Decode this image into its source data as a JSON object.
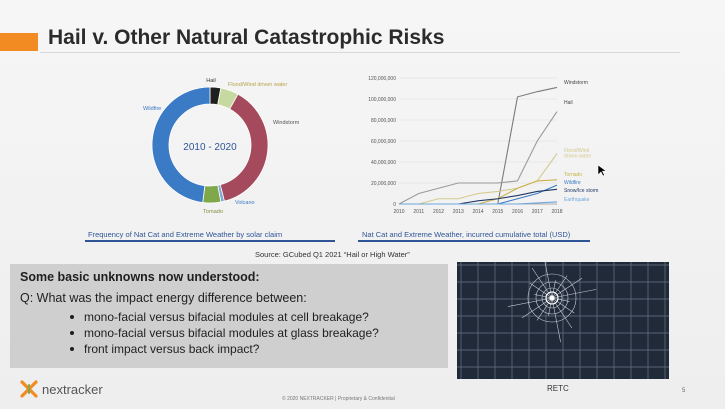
{
  "slide": {
    "title": "Hail v. Other Natural Catastrophic Risks",
    "source": "Source: GCubed Q1 2021 “Hail or High Water”",
    "photo_caption": "RETC",
    "footer": "© 2020 NEXTRACKER | Proprietary & Confidential",
    "page_number": "5",
    "accent_color": "#f28c22"
  },
  "logo": {
    "text": "nextracker",
    "icon": "nextracker-x-logo-icon"
  },
  "unknowns_panel": {
    "heading": "Some basic unknowns now understood:",
    "question": "Q: What was the impact energy difference between:",
    "bullets": [
      "mono-facial versus bifacial modules at cell breakage?",
      "mono-facial versus bifacial modules at glass breakage?",
      "front impact versus back impact?"
    ]
  },
  "chart_data": [
    {
      "type": "pie",
      "title": "",
      "center_label": "2010 - 2020",
      "caption": "Frequency of Nat Cat and Extreme Weather by solar claim",
      "slices": [
        {
          "label": "Hail",
          "value": 3,
          "color": "#1f1f1f"
        },
        {
          "label": "Flood/Wind driven water",
          "value": 5,
          "color": "#c5d9a0"
        },
        {
          "label": "Windstorm",
          "value": 38,
          "color": "#a54a5c"
        },
        {
          "label": "Volcano",
          "value": 1,
          "color": "#7fa7d6"
        },
        {
          "label": "Tornado",
          "value": 5,
          "color": "#7fa84a"
        },
        {
          "label": "Wildfire",
          "value": 48,
          "color": "#3b7ac4"
        }
      ]
    },
    {
      "type": "line",
      "title": "",
      "caption": "Nat Cat and Extreme Weather, incurred cumulative total (USD)",
      "x": [
        "2010",
        "2011",
        "2012",
        "2013",
        "2014",
        "2015",
        "2016",
        "2017",
        "2018"
      ],
      "ylim": [
        0,
        120000000
      ],
      "yticks": [
        "0",
        "20,000,000",
        "40,000,000",
        "60,000,000",
        "80,000,000",
        "100,000,000",
        "120,000,000"
      ],
      "series": [
        {
          "name": "Windstorm",
          "color": "#7a7a7a",
          "values": [
            0,
            0,
            0,
            0,
            0,
            0,
            102000000,
            107000000,
            111000000
          ]
        },
        {
          "name": "Hail",
          "color": "#9a9a9a",
          "values": [
            0,
            10000000,
            15000000,
            20000000,
            20000000,
            20000000,
            22000000,
            60000000,
            88000000
          ]
        },
        {
          "name": "Flood/Wind driven water",
          "color": "#d4c98e",
          "values": [
            0,
            0,
            5000000,
            5000000,
            10000000,
            12000000,
            15000000,
            22000000,
            48000000
          ]
        },
        {
          "name": "Tornado",
          "color": "#c9b24a",
          "values": [
            0,
            0,
            0,
            0,
            0,
            5000000,
            15000000,
            22000000,
            23000000
          ]
        },
        {
          "name": "Wildfire",
          "color": "#3b7ac4",
          "values": [
            0,
            0,
            0,
            0,
            0,
            0,
            5000000,
            10000000,
            18000000
          ]
        },
        {
          "name": "Snow/Ice storm",
          "color": "#1f3864",
          "values": [
            0,
            0,
            0,
            0,
            3000000,
            5000000,
            8000000,
            12000000,
            14000000
          ]
        },
        {
          "name": "Earthquake",
          "color": "#6fa8dc",
          "values": [
            0,
            0,
            0,
            0,
            0,
            0,
            0,
            1000000,
            2000000
          ]
        }
      ]
    }
  ]
}
